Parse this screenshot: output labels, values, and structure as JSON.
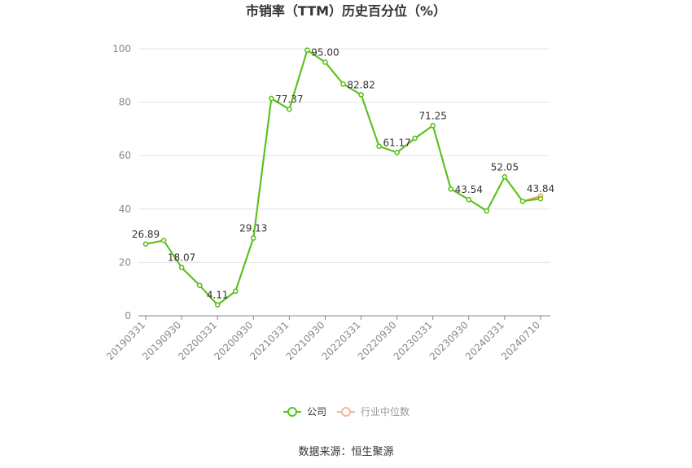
{
  "chart_data": {
    "type": "line",
    "title": "市销率（TTM）历史百分位（%）",
    "ylim": [
      0,
      100
    ],
    "yticks": [
      0,
      20,
      40,
      60,
      80,
      100
    ],
    "grid": true,
    "legend_placement": "bottom-center",
    "x_tick_labels": [
      "20190331",
      "20190930",
      "20200331",
      "20200930",
      "20210331",
      "20210930",
      "20220331",
      "20220930",
      "20230331",
      "20230930",
      "20240331",
      "20240710"
    ],
    "x": [
      "20190331",
      "20190630",
      "20190930",
      "20191231",
      "20200331",
      "20200630",
      "20200930",
      "20201231",
      "20210331",
      "20210630",
      "20210930",
      "20211231",
      "20220331",
      "20220630",
      "20220930",
      "20221231",
      "20230331",
      "20230630",
      "20230930",
      "20231231",
      "20240331",
      "20240630",
      "20240710"
    ],
    "series": [
      {
        "name": "公司",
        "color": "#52c41a",
        "values": [
          26.89,
          28.2,
          18.07,
          11.4,
          4.11,
          9.2,
          29.13,
          81.4,
          77.37,
          99.5,
          95.0,
          86.8,
          82.82,
          63.5,
          61.17,
          66.5,
          71.25,
          47.5,
          43.54,
          39.3,
          52.05,
          42.9,
          43.84
        ]
      },
      {
        "name": "行业中位数",
        "color": "#e8925a",
        "values": [
          26.89,
          28.2,
          18.07,
          11.4,
          4.11,
          9.2,
          29.13,
          81.4,
          77.37,
          99.5,
          95.0,
          86.8,
          82.82,
          63.5,
          61.17,
          66.5,
          71.25,
          47.5,
          43.54,
          39.3,
          52.05,
          42.9,
          44.8
        ]
      }
    ],
    "data_labels": [
      {
        "index": 0,
        "text": "26.89"
      },
      {
        "index": 2,
        "text": "18.07"
      },
      {
        "index": 4,
        "text": "4.11"
      },
      {
        "index": 6,
        "text": "29.13"
      },
      {
        "index": 8,
        "text": "77.37"
      },
      {
        "index": 10,
        "text": "95.00"
      },
      {
        "index": 12,
        "text": "82.82"
      },
      {
        "index": 14,
        "text": "61.17"
      },
      {
        "index": 16,
        "text": "71.25"
      },
      {
        "index": 18,
        "text": "43.54"
      },
      {
        "index": 20,
        "text": "52.05"
      },
      {
        "index": 22,
        "text": "43.84"
      }
    ]
  },
  "legend": {
    "company_label": "公司",
    "industry_label": "行业中位数"
  },
  "source": "数据来源：恒生聚源"
}
